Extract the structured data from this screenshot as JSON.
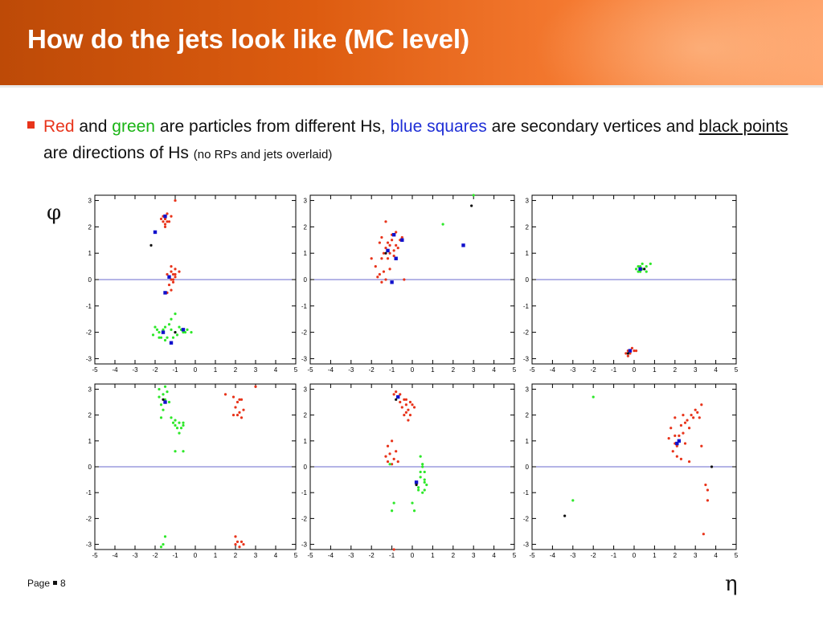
{
  "slide": {
    "title": "How do the jets look like (MC level)",
    "bullet": {
      "red": "Red",
      "and": "and",
      "green": "green",
      "t1": "are particles from different Hs,",
      "blue": "blue squares",
      "t2": "are secondary vertices and",
      "black": "black points",
      "t3": "are directions of Hs",
      "note": "(no RPs and jets overlaid)"
    },
    "y_label": "φ",
    "x_label": "η",
    "footer": {
      "page_word": "Page",
      "page_number": "8"
    }
  },
  "colors": {
    "red": "#e8341b",
    "green": "#2ee82a",
    "blue": "#1111cc",
    "black": "#111111",
    "axis_line": "#6a6acc"
  },
  "chart_data": [
    {
      "type": "scatter",
      "xlim": [
        -5,
        5
      ],
      "ylim": [
        -3.2,
        3.2
      ],
      "xticks": [
        -5,
        -4,
        -3,
        -2,
        -1,
        0,
        1,
        2,
        3,
        4,
        5
      ],
      "yticks": [
        -3,
        -2,
        -1,
        0,
        1,
        2,
        3
      ],
      "red": [
        [
          -1.6,
          2.4
        ],
        [
          -1.5,
          2.3
        ],
        [
          -1.4,
          2.2
        ],
        [
          -1.5,
          2.1
        ],
        [
          -1.3,
          2.2
        ],
        [
          -1.7,
          2.3
        ],
        [
          -1.2,
          2.4
        ],
        [
          -1.4,
          2.5
        ],
        [
          -1.6,
          2.2
        ],
        [
          -1.5,
          2.0
        ],
        [
          -1.2,
          0.3
        ],
        [
          -1.1,
          0.2
        ],
        [
          -1.3,
          0.1
        ],
        [
          -1.0,
          0.2
        ],
        [
          -1.2,
          0.0
        ],
        [
          -1.4,
          0.2
        ],
        [
          -1.0,
          0.4
        ],
        [
          -1.1,
          -0.1
        ],
        [
          -1.3,
          -0.2
        ],
        [
          -1.1,
          0.0
        ],
        [
          -1.2,
          -0.4
        ],
        [
          -1.0,
          0.1
        ],
        [
          -1.4,
          -0.5
        ],
        [
          -0.8,
          0.3
        ],
        [
          -1.2,
          0.5
        ],
        [
          -1.0,
          3.0
        ],
        [
          -1.5,
          2.3
        ]
      ],
      "green": [
        [
          -2.0,
          -1.8
        ],
        [
          -1.8,
          -2.0
        ],
        [
          -1.6,
          -1.9
        ],
        [
          -1.4,
          -2.2
        ],
        [
          -1.2,
          -1.9
        ],
        [
          -1.0,
          -2.0
        ],
        [
          -0.8,
          -1.8
        ],
        [
          -0.6,
          -2.0
        ],
        [
          -0.4,
          -1.9
        ],
        [
          -2.1,
          -2.1
        ],
        [
          -1.7,
          -2.2
        ],
        [
          -1.3,
          -1.7
        ],
        [
          -0.9,
          -2.1
        ],
        [
          -0.7,
          -1.9
        ],
        [
          -1.5,
          -1.8
        ],
        [
          -1.1,
          -2.2
        ],
        [
          -0.5,
          -2.0
        ],
        [
          -1.9,
          -1.9
        ],
        [
          -1.2,
          -1.5
        ],
        [
          -1.8,
          -2.2
        ],
        [
          -1.0,
          -1.3
        ],
        [
          -0.2,
          -2.0
        ],
        [
          -1.5,
          -2.3
        ]
      ],
      "blue": [
        [
          -1.5,
          2.4
        ],
        [
          -2.0,
          1.8
        ],
        [
          -1.3,
          0.1
        ],
        [
          -1.5,
          -0.5
        ],
        [
          -1.2,
          -2.4
        ],
        [
          -0.6,
          -1.9
        ],
        [
          -1.6,
          -2.0
        ]
      ],
      "black": [
        [
          -2.2,
          1.3
        ],
        [
          -1.0,
          -2.0
        ]
      ]
    },
    {
      "type": "scatter",
      "xlim": [
        -5,
        5
      ],
      "ylim": [
        -3.2,
        3.2
      ],
      "xticks": [
        -5,
        -4,
        -3,
        -2,
        -1,
        0,
        1,
        2,
        3,
        4,
        5
      ],
      "yticks": [
        -3,
        -2,
        -1,
        0,
        1,
        2,
        3
      ],
      "red": [
        [
          -1.5,
          1.6
        ],
        [
          -1.2,
          1.4
        ],
        [
          -1.0,
          1.5
        ],
        [
          -0.8,
          1.3
        ],
        [
          -1.3,
          1.2
        ],
        [
          -1.1,
          1.0
        ],
        [
          -0.9,
          1.1
        ],
        [
          -0.6,
          1.5
        ],
        [
          -1.6,
          1.4
        ],
        [
          -1.4,
          1.0
        ],
        [
          -1.0,
          1.7
        ],
        [
          -0.7,
          1.2
        ],
        [
          -1.2,
          0.8
        ],
        [
          -1.5,
          0.8
        ],
        [
          -1.8,
          0.5
        ],
        [
          -1.4,
          0.3
        ],
        [
          -1.6,
          0.2
        ],
        [
          -1.3,
          0.0
        ],
        [
          -1.5,
          -0.1
        ],
        [
          -1.1,
          0.4
        ],
        [
          -0.4,
          0.0
        ],
        [
          -1.7,
          0.1
        ],
        [
          -0.8,
          1.8
        ],
        [
          -1.3,
          2.2
        ],
        [
          -0.5,
          1.6
        ],
        [
          -2.0,
          0.8
        ],
        [
          -1.1,
          1.3
        ],
        [
          -0.9,
          0.9
        ]
      ],
      "green": [
        [
          1.5,
          2.1
        ],
        [
          3.0,
          3.2
        ]
      ],
      "blue": [
        [
          -0.9,
          1.7
        ],
        [
          -0.5,
          1.5
        ],
        [
          -0.8,
          0.8
        ],
        [
          -1.0,
          -0.1
        ],
        [
          2.5,
          1.3
        ],
        [
          -1.2,
          1.1
        ]
      ],
      "black": [
        [
          2.9,
          2.8
        ],
        [
          -1.3,
          1.0
        ]
      ]
    },
    {
      "type": "scatter",
      "xlim": [
        -5,
        5
      ],
      "ylim": [
        -3.2,
        3.2
      ],
      "xticks": [
        -5,
        -4,
        -3,
        -2,
        -1,
        0,
        1,
        2,
        3,
        4,
        5
      ],
      "yticks": [
        -3,
        -2,
        -1,
        0,
        1,
        2,
        3
      ],
      "red": [
        [
          -0.3,
          -2.7
        ],
        [
          -0.2,
          -2.8
        ],
        [
          0.0,
          -2.7
        ],
        [
          -0.4,
          -2.8
        ],
        [
          -0.1,
          -2.6
        ],
        [
          -0.3,
          -2.9
        ],
        [
          -0.2,
          -2.7
        ],
        [
          0.1,
          -2.7
        ]
      ],
      "green": [
        [
          0.2,
          0.5
        ],
        [
          0.4,
          0.4
        ],
        [
          0.6,
          0.5
        ],
        [
          0.3,
          0.3
        ],
        [
          0.8,
          0.6
        ],
        [
          0.5,
          0.4
        ],
        [
          0.3,
          0.5
        ],
        [
          0.1,
          0.4
        ],
        [
          0.6,
          0.3
        ],
        [
          0.4,
          0.6
        ],
        [
          0.2,
          0.3
        ]
      ],
      "blue": [
        [
          0.3,
          0.4
        ],
        [
          -0.2,
          -2.7
        ]
      ],
      "black": [
        [
          0.5,
          0.4
        ],
        [
          -0.3,
          -2.8
        ]
      ]
    },
    {
      "type": "scatter",
      "xlim": [
        -5,
        5
      ],
      "ylim": [
        -3.2,
        3.2
      ],
      "xticks": [
        -5,
        -4,
        -3,
        -2,
        -1,
        0,
        1,
        2,
        3,
        4,
        5
      ],
      "yticks": [
        -3,
        -2,
        -1,
        0,
        1,
        2,
        3
      ],
      "red": [
        [
          1.9,
          2.7
        ],
        [
          2.1,
          2.5
        ],
        [
          2.3,
          2.6
        ],
        [
          2.0,
          2.3
        ],
        [
          2.2,
          2.1
        ],
        [
          2.4,
          2.2
        ],
        [
          2.1,
          2.0
        ],
        [
          2.3,
          1.9
        ],
        [
          1.9,
          2.0
        ],
        [
          2.2,
          2.6
        ],
        [
          1.5,
          2.8
        ],
        [
          3.0,
          3.1
        ],
        [
          2.0,
          -3.0
        ],
        [
          2.1,
          -2.9
        ],
        [
          2.2,
          -3.1
        ],
        [
          2.0,
          -2.7
        ],
        [
          2.3,
          -2.9
        ],
        [
          2.4,
          -3.0
        ]
      ],
      "green": [
        [
          -1.8,
          3.0
        ],
        [
          -1.6,
          2.8
        ],
        [
          -1.5,
          2.6
        ],
        [
          -1.7,
          2.4
        ],
        [
          -1.4,
          2.9
        ],
        [
          -1.8,
          2.7
        ],
        [
          -1.5,
          3.1
        ],
        [
          -1.6,
          2.2
        ],
        [
          -1.3,
          2.5
        ],
        [
          -1.2,
          1.9
        ],
        [
          -1.1,
          1.7
        ],
        [
          -1.0,
          1.6
        ],
        [
          -0.8,
          1.7
        ],
        [
          -0.6,
          1.6
        ],
        [
          -0.9,
          1.5
        ],
        [
          -0.7,
          1.5
        ],
        [
          -0.8,
          1.3
        ],
        [
          -1.0,
          1.8
        ],
        [
          -0.6,
          1.7
        ],
        [
          -1.7,
          1.9
        ],
        [
          -1.0,
          0.6
        ],
        [
          -0.6,
          0.6
        ],
        [
          -1.5,
          -2.7
        ],
        [
          -1.6,
          -3.0
        ],
        [
          -1.7,
          -3.1
        ]
      ],
      "blue": [
        [
          -1.5,
          2.5
        ]
      ],
      "black": [
        [
          -1.6,
          2.6
        ]
      ]
    },
    {
      "type": "scatter",
      "xlim": [
        -5,
        5
      ],
      "ylim": [
        -3.2,
        3.2
      ],
      "xticks": [
        -5,
        -4,
        -3,
        -2,
        -1,
        0,
        1,
        2,
        3,
        4,
        5
      ],
      "yticks": [
        -3,
        -2,
        -1,
        0,
        1,
        2,
        3
      ],
      "red": [
        [
          -0.8,
          2.9
        ],
        [
          -0.6,
          2.8
        ],
        [
          -0.4,
          2.6
        ],
        [
          -0.3,
          2.4
        ],
        [
          -0.5,
          2.3
        ],
        [
          -0.2,
          2.2
        ],
        [
          0.0,
          2.4
        ],
        [
          -0.3,
          2.1
        ],
        [
          -0.1,
          2.0
        ],
        [
          -0.4,
          2.0
        ],
        [
          0.1,
          2.3
        ],
        [
          -0.2,
          1.8
        ],
        [
          -0.6,
          2.5
        ],
        [
          -0.1,
          2.5
        ],
        [
          -0.3,
          2.6
        ],
        [
          -0.9,
          2.8
        ],
        [
          -1.0,
          1.0
        ],
        [
          -1.2,
          0.8
        ],
        [
          -0.8,
          0.6
        ],
        [
          -1.1,
          0.5
        ],
        [
          -1.3,
          0.4
        ],
        [
          -0.9,
          0.3
        ],
        [
          -1.0,
          0.1
        ],
        [
          -0.7,
          0.2
        ],
        [
          -1.2,
          0.2
        ],
        [
          -0.9,
          -3.2
        ]
      ],
      "green": [
        [
          0.4,
          0.4
        ],
        [
          0.5,
          0.1
        ],
        [
          0.6,
          -0.2
        ],
        [
          0.4,
          -0.4
        ],
        [
          0.6,
          -0.6
        ],
        [
          0.3,
          -0.8
        ],
        [
          0.5,
          0.0
        ],
        [
          0.4,
          -0.2
        ],
        [
          0.6,
          -0.5
        ],
        [
          0.2,
          -0.6
        ],
        [
          -1.1,
          0.1
        ],
        [
          -0.9,
          -1.4
        ],
        [
          -1.0,
          -1.7
        ],
        [
          0.0,
          -1.4
        ],
        [
          0.1,
          -1.7
        ],
        [
          0.7,
          -0.7
        ],
        [
          0.5,
          -1.0
        ],
        [
          0.3,
          -0.9
        ],
        [
          0.6,
          -0.9
        ]
      ],
      "blue": [
        [
          -0.7,
          2.7
        ],
        [
          0.2,
          -0.6
        ]
      ],
      "black": [
        [
          -0.8,
          2.6
        ],
        [
          0.2,
          -0.7
        ]
      ]
    },
    {
      "type": "scatter",
      "xlim": [
        -5,
        5
      ],
      "ylim": [
        -3.2,
        3.2
      ],
      "xticks": [
        -5,
        -4,
        -3,
        -2,
        -1,
        0,
        1,
        2,
        3,
        4,
        5
      ],
      "yticks": [
        -3,
        -2,
        -1,
        0,
        1,
        2,
        3
      ],
      "red": [
        [
          1.8,
          1.5
        ],
        [
          2.0,
          1.2
        ],
        [
          2.2,
          1.0
        ],
        [
          2.4,
          1.3
        ],
        [
          2.1,
          0.8
        ],
        [
          2.5,
          0.9
        ],
        [
          2.3,
          1.6
        ],
        [
          2.6,
          1.8
        ],
        [
          2.8,
          2.0
        ],
        [
          3.0,
          2.2
        ],
        [
          3.2,
          1.9
        ],
        [
          2.0,
          1.9
        ],
        [
          2.4,
          2.0
        ],
        [
          2.7,
          1.5
        ],
        [
          3.3,
          2.4
        ],
        [
          3.5,
          -0.7
        ],
        [
          3.6,
          -0.9
        ],
        [
          3.6,
          -1.3
        ],
        [
          3.4,
          -2.6
        ],
        [
          2.1,
          0.4
        ],
        [
          2.3,
          0.3
        ],
        [
          2.7,
          0.2
        ],
        [
          1.9,
          0.6
        ],
        [
          3.3,
          0.8
        ],
        [
          2.0,
          0.9
        ],
        [
          1.7,
          1.1
        ],
        [
          2.9,
          1.9
        ],
        [
          3.1,
          2.1
        ],
        [
          2.5,
          1.7
        ],
        [
          2.2,
          1.2
        ]
      ],
      "green": [
        [
          -3.0,
          -1.3
        ],
        [
          -2.0,
          2.7
        ]
      ],
      "blue": [
        [
          2.2,
          1.0
        ],
        [
          2.1,
          0.9
        ]
      ],
      "black": [
        [
          3.8,
          0.0
        ],
        [
          -3.4,
          -1.9
        ]
      ]
    }
  ]
}
